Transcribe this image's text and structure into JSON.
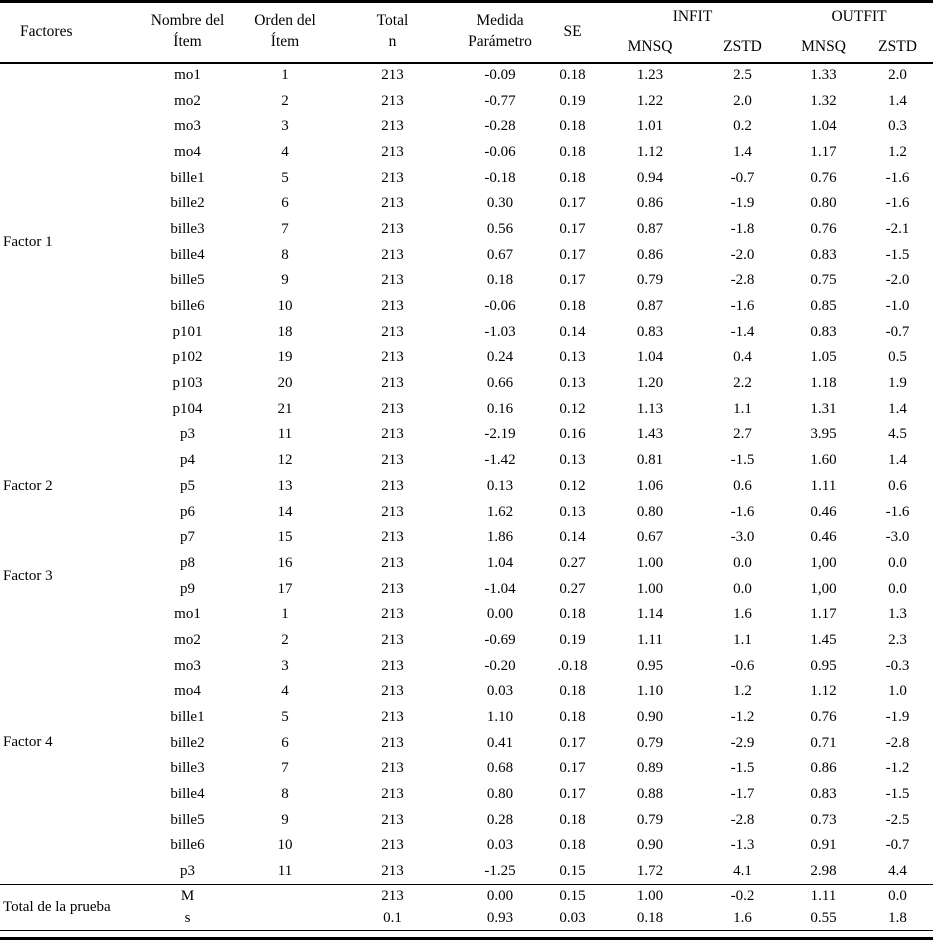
{
  "document": {
    "background": "#ffffff",
    "text_color": "#000000",
    "rule_color": "#000000"
  },
  "table": {
    "header": {
      "factores": "Factores",
      "nombre_del_item": [
        "Nombre del",
        "Ítem"
      ],
      "orden_del_item": [
        "Orden del",
        "Ítem"
      ],
      "total_n": [
        "Total",
        "n"
      ],
      "medida_parametro": [
        "Medida",
        "Parámetro"
      ],
      "se": "SE",
      "infit": "INFIT",
      "outfit": "OUTFIT",
      "infit_mnsq": "MNSQ",
      "infit_zstd": "ZSTD",
      "outfit_mnsq": "MNSQ",
      "outfit_zstd": "ZSTD"
    },
    "column_keys": [
      "item",
      "orden",
      "n",
      "medida",
      "se",
      "infit_mnsq",
      "infit_zstd",
      "outfit_mnsq",
      "outfit_zstd"
    ],
    "groups": [
      {
        "label": "Factor 1",
        "rule_above": false,
        "total_rows": false,
        "rows": [
          [
            "mo1",
            "1",
            "213",
            "-0.09",
            "0.18",
            "1.23",
            "2.5",
            "1.33",
            "2.0"
          ],
          [
            "mo2",
            "2",
            "213",
            "-0.77",
            "0.19",
            "1.22",
            "2.0",
            "1.32",
            "1.4"
          ],
          [
            "mo3",
            "3",
            "213",
            "-0.28",
            "0.18",
            "1.01",
            "0.2",
            "1.04",
            "0.3"
          ],
          [
            "mo4",
            "4",
            "213",
            "-0.06",
            "0.18",
            "1.12",
            "1.4",
            "1.17",
            "1.2"
          ],
          [
            "bille1",
            "5",
            "213",
            "-0.18",
            "0.18",
            "0.94",
            "-0.7",
            "0.76",
            "-1.6"
          ],
          [
            "bille2",
            "6",
            "213",
            "0.30",
            "0.17",
            "0.86",
            "-1.9",
            "0.80",
            "-1.6"
          ],
          [
            "bille3",
            "7",
            "213",
            "0.56",
            "0.17",
            "0.87",
            "-1.8",
            "0.76",
            "-2.1"
          ],
          [
            "bille4",
            "8",
            "213",
            "0.67",
            "0.17",
            "0.86",
            "-2.0",
            "0.83",
            "-1.5"
          ],
          [
            "bille5",
            "9",
            "213",
            "0.18",
            "0.17",
            "0.79",
            "-2.8",
            "0.75",
            "-2.0"
          ],
          [
            "bille6",
            "10",
            "213",
            "-0.06",
            "0.18",
            "0.87",
            "-1.6",
            "0.85",
            "-1.0"
          ],
          [
            "p101",
            "18",
            "213",
            "-1.03",
            "0.14",
            "0.83",
            "-1.4",
            "0.83",
            "-0.7"
          ],
          [
            "p102",
            "19",
            "213",
            "0.24",
            "0.13",
            "1.04",
            "0.4",
            "1.05",
            "0.5"
          ],
          [
            "p103",
            "20",
            "213",
            "0.66",
            "0.13",
            "1.20",
            "2.2",
            "1.18",
            "1.9"
          ],
          [
            "p104",
            "21",
            "213",
            "0.16",
            "0.12",
            "1.13",
            "1.1",
            "1.31",
            "1.4"
          ]
        ]
      },
      {
        "label": "Factor 2",
        "rule_above": false,
        "total_rows": false,
        "rows": [
          [
            "p3",
            "11",
            "213",
            "-2.19",
            "0.16",
            "1.43",
            "2.7",
            "3.95",
            "4.5"
          ],
          [
            "p4",
            "12",
            "213",
            "-1.42",
            "0.13",
            "0.81",
            "-1.5",
            "1.60",
            "1.4"
          ],
          [
            "p5",
            "13",
            "213",
            "0.13",
            "0.12",
            "1.06",
            "0.6",
            "1.11",
            "0.6"
          ],
          [
            "p6",
            "14",
            "213",
            "1.62",
            "0.13",
            "0.80",
            "-1.6",
            "0.46",
            "-1.6"
          ],
          [
            "p7",
            "15",
            "213",
            "1.86",
            "0.14",
            "0.67",
            "-3.0",
            "0.46",
            "-3.0"
          ]
        ]
      },
      {
        "label": "Factor 3",
        "rule_above": false,
        "total_rows": false,
        "rows": [
          [
            "p8",
            "16",
            "213",
            "1.04",
            "0.27",
            "1.00",
            "0.0",
            "1,00",
            "0.0"
          ],
          [
            "p9",
            "17",
            "213",
            "-1.04",
            "0.27",
            "1.00",
            "0.0",
            "1,00",
            "0.0"
          ]
        ]
      },
      {
        "label": "Factor 4",
        "rule_above": false,
        "total_rows": false,
        "rows": [
          [
            "mo1",
            "1",
            "213",
            "0.00",
            "0.18",
            "1.14",
            "1.6",
            "1.17",
            "1.3"
          ],
          [
            "mo2",
            "2",
            "213",
            "-0.69",
            "0.19",
            "1.11",
            "1.1",
            "1.45",
            "2.3"
          ],
          [
            "mo3",
            "3",
            "213",
            "-0.20",
            ".0.18",
            "0.95",
            "-0.6",
            "0.95",
            "-0.3"
          ],
          [
            "mo4",
            "4",
            "213",
            "0.03",
            "0.18",
            "1.10",
            "1.2",
            "1.12",
            "1.0"
          ],
          [
            "bille1",
            "5",
            "213",
            "1.10",
            "0.18",
            "0.90",
            "-1.2",
            "0.76",
            "-1.9"
          ],
          [
            "bille2",
            "6",
            "213",
            "0.41",
            "0.17",
            "0.79",
            "-2.9",
            "0.71",
            "-2.8"
          ],
          [
            "bille3",
            "7",
            "213",
            "0.68",
            "0.17",
            "0.89",
            "-1.5",
            "0.86",
            "-1.2"
          ],
          [
            "bille4",
            "8",
            "213",
            "0.80",
            "0.17",
            "0.88",
            "-1.7",
            "0.83",
            "-1.5"
          ],
          [
            "bille5",
            "9",
            "213",
            "0.28",
            "0.18",
            "0.79",
            "-2.8",
            "0.73",
            "-2.5"
          ],
          [
            "bille6",
            "10",
            "213",
            "0.03",
            "0.18",
            "0.90",
            "-1.3",
            "0.91",
            "-0.7"
          ],
          [
            "p3",
            "11",
            "213",
            "-1.25",
            "0.15",
            "1.72",
            "4.1",
            "2.98",
            "4.4"
          ]
        ]
      },
      {
        "label": "Total de la prueba",
        "rule_above": true,
        "total_rows": true,
        "rows": [
          [
            "M",
            "",
            "213",
            "0.00",
            "0.15",
            "1.00",
            "-0.2",
            "1.11",
            "0.0"
          ],
          [
            "s",
            "",
            "0.1",
            "0.93",
            "0.03",
            "0.18",
            "1.6",
            "0.55",
            "1.8"
          ]
        ]
      }
    ]
  }
}
